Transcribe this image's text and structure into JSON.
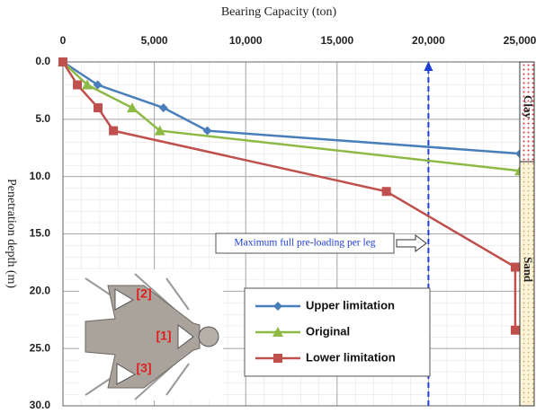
{
  "chart_data": {
    "type": "line",
    "title": "Bearing Capacity (ton)",
    "y_label": "Penetration depth (m)",
    "xaxis_position": "top",
    "y_inverted": true,
    "xlim": [
      0,
      25000
    ],
    "xticks": [
      0,
      {
        "value": 5000,
        "label": "5,000"
      },
      {
        "value": 10000,
        "label": "10,000"
      },
      {
        "value": 15000,
        "label": "15,000"
      },
      {
        "value": 20000,
        "label": "20,000"
      },
      {
        "value": 25000,
        "label": "25,000"
      }
    ],
    "ylim": [
      0,
      30
    ],
    "yticks": [
      {
        "value": 0,
        "label": "0.0"
      },
      {
        "value": 5,
        "label": "5.0"
      },
      {
        "value": 10,
        "label": "10.0"
      },
      {
        "value": 15,
        "label": "15.0"
      },
      {
        "value": 20,
        "label": "20.0"
      },
      {
        "value": 25,
        "label": "25.0"
      },
      {
        "value": 30,
        "label": "30.0"
      }
    ],
    "grid": true,
    "series": [
      {
        "name": "Upper limitation",
        "color": "#4a7ebb",
        "marker": "diamond",
        "x": [
          0,
          1900,
          5500,
          7900,
          25000
        ],
        "values": [
          0,
          2,
          4,
          6,
          8
        ]
      },
      {
        "name": "Original",
        "color": "#8dba45",
        "marker": "triangle",
        "x": [
          0,
          1330,
          3790,
          5300,
          25000
        ],
        "values": [
          0,
          2,
          4,
          6,
          9.5
        ]
      },
      {
        "name": "Lower limitation",
        "color": "#c0504d",
        "marker": "square",
        "x": [
          0,
          790,
          1920,
          2760,
          17700,
          24750,
          24750
        ],
        "values": [
          0,
          2,
          4,
          6,
          11.3,
          17.9,
          23.4
        ]
      }
    ],
    "reference_line": {
      "x": 20000,
      "color": "#1f3fd6"
    },
    "annotation": "Maximum full pre-loading per leg",
    "layers": [
      {
        "name": "Clay",
        "top": 0,
        "bottom": 8.7,
        "color": "#e03030"
      },
      {
        "name": "Sand",
        "top": 8.7,
        "bottom": 30,
        "color": "#e8c060"
      }
    ]
  },
  "inset": {
    "labels": [
      "[1]",
      "[2]",
      "[3]"
    ]
  }
}
